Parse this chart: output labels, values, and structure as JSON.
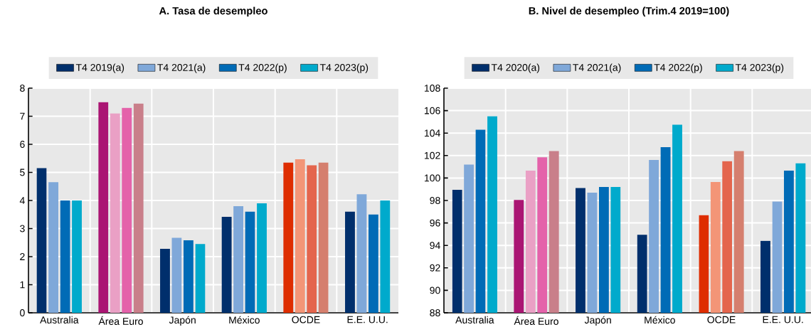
{
  "chart_data": [
    {
      "type": "bar",
      "title": "A. Tasa de desempleo",
      "categories": [
        "Australia",
        "Área Euro",
        "Japón",
        "México",
        "OCDE",
        "E.E. U.U."
      ],
      "ylim": [
        0,
        8
      ],
      "yticks": [
        0,
        1,
        2,
        3,
        4,
        5,
        6,
        7,
        8
      ],
      "grid": true,
      "legend": "top",
      "series": [
        {
          "name": "T4 2019(a)",
          "color": "#002f6c",
          "colors": [
            "#002f6c",
            "#aa1573",
            "#002f6c",
            "#002f6c",
            "#de2d00",
            "#002f6c"
          ],
          "values": [
            5.15,
            7.5,
            2.28,
            3.42,
            5.35,
            3.6
          ]
        },
        {
          "name": "T4 2021(a)",
          "color": "#7fa8d9",
          "colors": [
            "#7fa8d9",
            "#eaa0c5",
            "#7fa8d9",
            "#7fa8d9",
            "#f39577",
            "#7fa8d9"
          ],
          "values": [
            4.65,
            7.1,
            2.67,
            3.8,
            5.47,
            4.22
          ]
        },
        {
          "name": "T4 2022(p)",
          "color": "#006bb6",
          "colors": [
            "#006bb6",
            "#e462aa",
            "#006bb6",
            "#006bb6",
            "#e4654d",
            "#006bb6"
          ],
          "values": [
            4.0,
            7.3,
            2.58,
            3.6,
            5.25,
            3.5
          ]
        },
        {
          "name": "T4 2023(p)",
          "color": "#00aacc",
          "colors": [
            "#00aacc",
            "#c97f8a",
            "#00aacc",
            "#00aacc",
            "#d57f6e",
            "#00aacc"
          ],
          "values": [
            4.0,
            7.45,
            2.45,
            3.9,
            5.35,
            4.0
          ]
        }
      ]
    },
    {
      "type": "bar",
      "title": "B. Nivel de desempleo (Trim.4 2019=100)",
      "categories": [
        "Australia",
        "Área Euro",
        "Japón",
        "México",
        "OCDE",
        "E.E. U.U."
      ],
      "ylim": [
        88,
        108
      ],
      "yticks": [
        88,
        90,
        92,
        94,
        96,
        98,
        100,
        102,
        104,
        106,
        108
      ],
      "grid": true,
      "legend": "top",
      "series": [
        {
          "name": "T4 2020(a)",
          "color": "#002f6c",
          "colors": [
            "#002f6c",
            "#aa1573",
            "#002f6c",
            "#002f6c",
            "#de2d00",
            "#002f6c"
          ],
          "values": [
            98.95,
            98.05,
            99.1,
            94.95,
            96.7,
            94.4
          ]
        },
        {
          "name": "T4 2021(a)",
          "color": "#7fa8d9",
          "colors": [
            "#7fa8d9",
            "#eaa0c5",
            "#7fa8d9",
            "#7fa8d9",
            "#f39577",
            "#7fa8d9"
          ],
          "values": [
            101.2,
            100.65,
            98.7,
            101.6,
            99.65,
            97.9
          ]
        },
        {
          "name": "T4 2022(p)",
          "color": "#006bb6",
          "colors": [
            "#006bb6",
            "#e462aa",
            "#006bb6",
            "#006bb6",
            "#e4654d",
            "#006bb6"
          ],
          "values": [
            104.3,
            101.85,
            99.2,
            102.75,
            101.5,
            100.65
          ]
        },
        {
          "name": "T4 2023(p)",
          "color": "#00aacc",
          "colors": [
            "#00aacc",
            "#c97f8a",
            "#00aacc",
            "#00aacc",
            "#d57f6e",
            "#00aacc"
          ],
          "values": [
            105.5,
            102.4,
            99.2,
            104.75,
            102.4,
            101.3
          ]
        }
      ]
    }
  ]
}
